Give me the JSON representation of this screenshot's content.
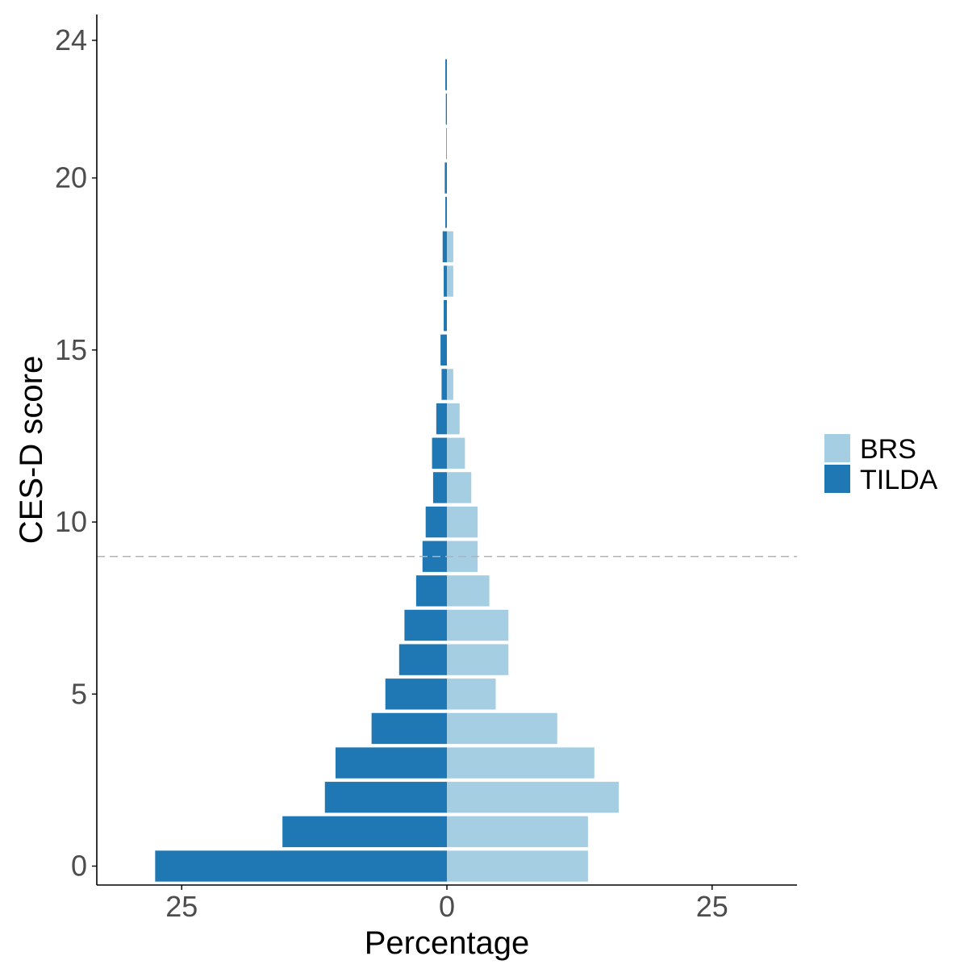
{
  "chart_data": {
    "type": "bar",
    "orientation": "horizontal-diverging",
    "xlabel": "Percentage",
    "ylabel": "CES-D score",
    "x_tick_values": [
      -25,
      0,
      25
    ],
    "x_tick_labels": [
      "25",
      "0",
      "25"
    ],
    "y_tick_values": [
      0,
      5,
      10,
      15,
      20,
      24
    ],
    "y_tick_labels": [
      "0",
      "5",
      "10",
      "15",
      "20",
      "24"
    ],
    "xlim": [
      -33,
      33
    ],
    "ylim": [
      -0.55,
      24.75
    ],
    "grid": false,
    "reference_line": {
      "y": 9,
      "style": "dashed",
      "color": "#b3b3b3"
    },
    "legend_position": "right",
    "categories": [
      0,
      1,
      2,
      3,
      4,
      5,
      6,
      7,
      8,
      9,
      10,
      11,
      12,
      13,
      14,
      15,
      16,
      17,
      18,
      19,
      20,
      21,
      22,
      23
    ],
    "series": [
      {
        "name": "BRS",
        "side": "right",
        "color": "#a6cee3",
        "values": [
          13.3,
          13.3,
          16.2,
          13.9,
          10.4,
          4.6,
          5.8,
          5.8,
          4.0,
          2.9,
          2.9,
          2.3,
          1.7,
          1.2,
          0.6,
          0.0,
          0.0,
          0.6,
          0.6,
          0.0,
          0.0,
          0.0,
          0.0,
          0.0
        ]
      },
      {
        "name": "TILDA",
        "side": "left",
        "color": "#1f78b4",
        "values": [
          27.5,
          15.5,
          11.5,
          10.5,
          7.1,
          5.8,
          4.5,
          4.0,
          2.9,
          2.3,
          2.0,
          1.3,
          1.4,
          1.0,
          0.5,
          0.6,
          0.3,
          0.3,
          0.4,
          0.15,
          0.2,
          0.05,
          0.1,
          0.15
        ]
      }
    ]
  }
}
